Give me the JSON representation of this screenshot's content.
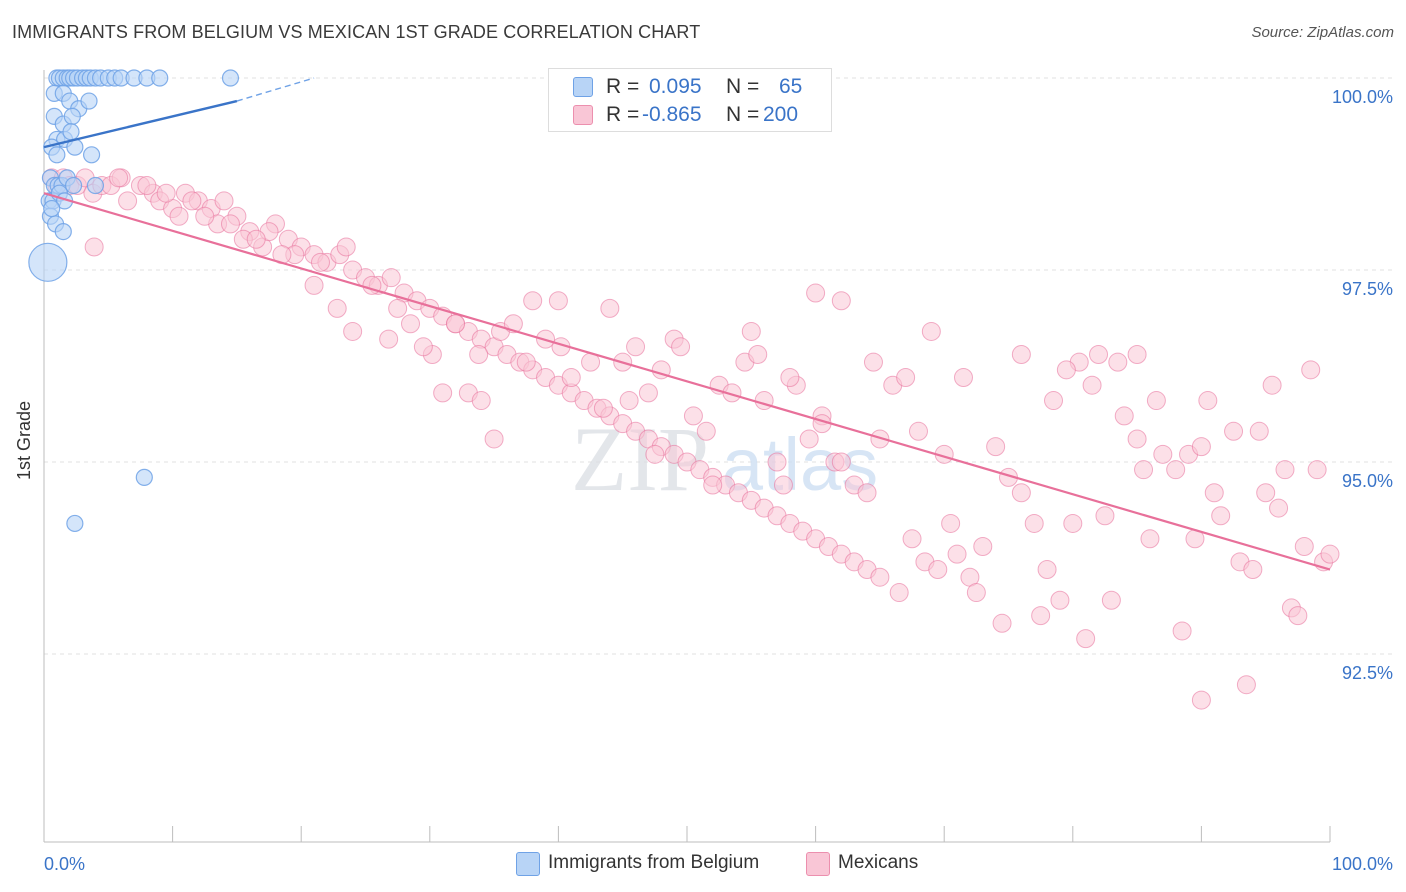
{
  "title": "IMMIGRANTS FROM BELGIUM VS MEXICAN 1ST GRADE CORRELATION CHART",
  "source": "Source: ZipAtlas.com",
  "watermark": {
    "zip": "ZIP",
    "atlas": "atlas"
  },
  "legend_top": {
    "rows": [
      {
        "r_label": "R =",
        "r_value": "0.095",
        "n_label": "N =",
        "n_value": "65",
        "color": "#6fa2e6"
      },
      {
        "r_label": "R =",
        "r_value": "-0.865",
        "n_label": "N =",
        "n_value": "200",
        "color": "#ec8fae"
      }
    ]
  },
  "legend_bottom": {
    "items": [
      {
        "label": "Immigrants from Belgium",
        "color": "#b8d4f6"
      },
      {
        "label": "Mexicans",
        "color": "#f9c6d6"
      }
    ]
  },
  "chart_data": {
    "type": "scatter",
    "title": "IMMIGRANTS FROM BELGIUM VS MEXICAN 1ST GRADE CORRELATION CHART",
    "xlabel": "",
    "ylabel": "1st Grade",
    "xlim": [
      0,
      100
    ],
    "ylim": [
      90.0,
      100.2
    ],
    "x_tick_labels": [
      "0.0%",
      "100.0%"
    ],
    "y_ticks": [
      100.0,
      97.5,
      95.0,
      92.5
    ],
    "y_tick_labels": [
      "100.0%",
      "97.5%",
      "95.0%",
      "92.5%"
    ],
    "series": [
      {
        "name": "Immigrants from Belgium",
        "color": "#6fa2e6",
        "fill": "#b8d4f6",
        "trend": {
          "x0": 0,
          "y0": 99.1,
          "x1": 15,
          "y1": 99.7,
          "dash_to_x": 21,
          "dash_to_y": 100.0
        },
        "points": [
          [
            1.0,
            100.0
          ],
          [
            1.2,
            100.0
          ],
          [
            1.5,
            100.0
          ],
          [
            1.8,
            100.0
          ],
          [
            2.0,
            100.0
          ],
          [
            2.3,
            100.0
          ],
          [
            2.6,
            100.0
          ],
          [
            3.0,
            100.0
          ],
          [
            3.3,
            100.0
          ],
          [
            3.6,
            100.0
          ],
          [
            4.0,
            100.0
          ],
          [
            4.4,
            100.0
          ],
          [
            5.0,
            100.0
          ],
          [
            5.5,
            100.0
          ],
          [
            6.0,
            100.0
          ],
          [
            7.0,
            100.0
          ],
          [
            8.0,
            100.0
          ],
          [
            9.0,
            100.0
          ],
          [
            14.5,
            100.0
          ],
          [
            0.8,
            99.8
          ],
          [
            1.5,
            99.8
          ],
          [
            2.0,
            99.7
          ],
          [
            2.7,
            99.6
          ],
          [
            3.5,
            99.7
          ],
          [
            0.8,
            99.5
          ],
          [
            1.5,
            99.4
          ],
          [
            2.2,
            99.5
          ],
          [
            1.0,
            99.2
          ],
          [
            1.6,
            99.2
          ],
          [
            2.1,
            99.3
          ],
          [
            0.6,
            99.1
          ],
          [
            1.0,
            99.0
          ],
          [
            2.4,
            99.1
          ],
          [
            3.7,
            99.0
          ],
          [
            0.5,
            98.7
          ],
          [
            0.8,
            98.6
          ],
          [
            1.1,
            98.6
          ],
          [
            1.4,
            98.6
          ],
          [
            1.8,
            98.7
          ],
          [
            2.3,
            98.6
          ],
          [
            0.4,
            98.4
          ],
          [
            0.7,
            98.4
          ],
          [
            1.2,
            98.5
          ],
          [
            1.6,
            98.4
          ],
          [
            0.5,
            98.2
          ],
          [
            0.9,
            98.1
          ],
          [
            1.5,
            98.0
          ],
          [
            0.6,
            98.3
          ],
          [
            4.0,
            98.6
          ],
          [
            0.3,
            97.6
          ],
          [
            7.8,
            94.8
          ],
          [
            2.4,
            94.2
          ]
        ],
        "large_point": [
          0.3,
          97.6
        ]
      },
      {
        "name": "Mexicans",
        "color": "#e8709a",
        "fill": "#f9c6d6",
        "trend": {
          "x0": 0,
          "y0": 98.5,
          "x1": 100,
          "y1": 93.6
        },
        "points": [
          [
            0.6,
            98.7
          ],
          [
            1.0,
            98.6
          ],
          [
            1.5,
            98.7
          ],
          [
            2.0,
            98.6
          ],
          [
            2.6,
            98.6
          ],
          [
            3.2,
            98.7
          ],
          [
            3.8,
            98.5
          ],
          [
            4.5,
            98.6
          ],
          [
            5.2,
            98.6
          ],
          [
            6.0,
            98.7
          ],
          [
            6.5,
            98.4
          ],
          [
            7.5,
            98.6
          ],
          [
            8.5,
            98.5
          ],
          [
            9.0,
            98.4
          ],
          [
            10.0,
            98.3
          ],
          [
            11.0,
            98.5
          ],
          [
            12.0,
            98.4
          ],
          [
            13.0,
            98.3
          ],
          [
            14.0,
            98.4
          ],
          [
            15.0,
            98.2
          ],
          [
            16.0,
            98.0
          ],
          [
            17.0,
            97.8
          ],
          [
            18.0,
            98.1
          ],
          [
            19.0,
            97.9
          ],
          [
            20.0,
            97.8
          ],
          [
            21.0,
            97.7
          ],
          [
            22.0,
            97.6
          ],
          [
            23.0,
            97.7
          ],
          [
            24.0,
            97.5
          ],
          [
            25.0,
            97.4
          ],
          [
            26.0,
            97.3
          ],
          [
            27.0,
            97.4
          ],
          [
            28.0,
            97.2
          ],
          [
            29.0,
            97.1
          ],
          [
            30.0,
            97.0
          ],
          [
            31.0,
            96.9
          ],
          [
            32.0,
            96.8
          ],
          [
            33.0,
            96.7
          ],
          [
            34.0,
            96.6
          ],
          [
            35.0,
            96.5
          ],
          [
            36.0,
            96.4
          ],
          [
            37.0,
            96.3
          ],
          [
            38.0,
            96.2
          ],
          [
            39.0,
            96.1
          ],
          [
            40.0,
            96.0
          ],
          [
            41.0,
            95.9
          ],
          [
            42.0,
            95.8
          ],
          [
            43.0,
            95.7
          ],
          [
            44.0,
            95.6
          ],
          [
            45.0,
            95.5
          ],
          [
            46.0,
            95.4
          ],
          [
            47.0,
            95.3
          ],
          [
            48.0,
            95.2
          ],
          [
            49.0,
            95.1
          ],
          [
            50.0,
            95.0
          ],
          [
            51.0,
            94.9
          ],
          [
            52.0,
            94.8
          ],
          [
            53.0,
            94.7
          ],
          [
            54.0,
            94.6
          ],
          [
            55.0,
            94.5
          ],
          [
            56.0,
            94.4
          ],
          [
            57.0,
            94.3
          ],
          [
            58.0,
            94.2
          ],
          [
            59.0,
            94.1
          ],
          [
            60.0,
            94.0
          ],
          [
            61.0,
            93.9
          ],
          [
            62.0,
            93.8
          ],
          [
            63.0,
            93.7
          ],
          [
            64.0,
            93.6
          ],
          [
            65.0,
            93.5
          ],
          [
            3.9,
            97.8
          ],
          [
            10.5,
            98.2
          ],
          [
            13.5,
            98.1
          ],
          [
            15.5,
            97.9
          ],
          [
            17.5,
            98.0
          ],
          [
            19.5,
            97.7
          ],
          [
            21.5,
            97.6
          ],
          [
            23.5,
            97.8
          ],
          [
            22.8,
            97.0
          ],
          [
            25.5,
            97.3
          ],
          [
            26.8,
            96.6
          ],
          [
            28.5,
            96.8
          ],
          [
            30.2,
            96.4
          ],
          [
            32.0,
            96.8
          ],
          [
            33.8,
            96.4
          ],
          [
            35.5,
            96.7
          ],
          [
            31.0,
            95.9
          ],
          [
            33.0,
            95.9
          ],
          [
            35.0,
            95.3
          ],
          [
            36.5,
            96.8
          ],
          [
            38.0,
            97.1
          ],
          [
            40.0,
            97.1
          ],
          [
            40.2,
            96.5
          ],
          [
            41.0,
            96.1
          ],
          [
            42.5,
            96.3
          ],
          [
            43.5,
            95.7
          ],
          [
            45.0,
            96.3
          ],
          [
            46.0,
            96.5
          ],
          [
            47.0,
            95.9
          ],
          [
            48.0,
            96.2
          ],
          [
            49.0,
            96.6
          ],
          [
            49.5,
            96.5
          ],
          [
            50.5,
            95.6
          ],
          [
            51.5,
            95.4
          ],
          [
            52.5,
            96.0
          ],
          [
            53.5,
            95.9
          ],
          [
            54.5,
            96.3
          ],
          [
            55.5,
            96.4
          ],
          [
            56.0,
            95.8
          ],
          [
            57.0,
            95.0
          ],
          [
            57.5,
            94.7
          ],
          [
            58.5,
            96.0
          ],
          [
            59.5,
            95.3
          ],
          [
            60.5,
            95.6
          ],
          [
            61.5,
            95.0
          ],
          [
            62.0,
            95.0
          ],
          [
            63.0,
            94.7
          ],
          [
            64.0,
            94.6
          ],
          [
            65.0,
            95.3
          ],
          [
            66.0,
            96.0
          ],
          [
            67.0,
            96.1
          ],
          [
            67.5,
            94.0
          ],
          [
            68.5,
            93.7
          ],
          [
            69.5,
            93.6
          ],
          [
            70.5,
            94.2
          ],
          [
            71.0,
            93.8
          ],
          [
            72.0,
            93.5
          ],
          [
            73.0,
            93.9
          ],
          [
            74.0,
            95.2
          ],
          [
            75.0,
            94.8
          ],
          [
            76.0,
            94.6
          ],
          [
            77.0,
            94.2
          ],
          [
            78.0,
            93.6
          ],
          [
            79.0,
            93.2
          ],
          [
            80.0,
            94.2
          ],
          [
            80.5,
            96.3
          ],
          [
            81.5,
            96.0
          ],
          [
            82.5,
            94.3
          ],
          [
            83.5,
            96.3
          ],
          [
            84.0,
            95.6
          ],
          [
            85.0,
            95.3
          ],
          [
            85.5,
            94.9
          ],
          [
            86.0,
            94.0
          ],
          [
            87.0,
            95.1
          ],
          [
            88.0,
            94.9
          ],
          [
            89.0,
            95.1
          ],
          [
            89.5,
            94.0
          ],
          [
            90.0,
            95.2
          ],
          [
            91.0,
            94.6
          ],
          [
            91.5,
            94.3
          ],
          [
            92.5,
            95.4
          ],
          [
            93.0,
            93.7
          ],
          [
            94.0,
            93.6
          ],
          [
            95.0,
            94.6
          ],
          [
            95.5,
            96.0
          ],
          [
            96.0,
            94.4
          ],
          [
            96.5,
            94.9
          ],
          [
            97.0,
            93.1
          ],
          [
            98.0,
            93.9
          ],
          [
            98.5,
            96.2
          ],
          [
            99.0,
            94.9
          ],
          [
            99.5,
            93.7
          ],
          [
            100.0,
            93.8
          ],
          [
            60.0,
            97.2
          ],
          [
            62.0,
            97.1
          ],
          [
            44.0,
            97.0
          ],
          [
            55.0,
            96.7
          ],
          [
            60.5,
            95.5
          ],
          [
            66.5,
            93.3
          ],
          [
            68.0,
            95.4
          ],
          [
            70.0,
            95.1
          ],
          [
            72.5,
            93.3
          ],
          [
            74.5,
            92.9
          ],
          [
            77.5,
            93.0
          ],
          [
            79.5,
            96.2
          ],
          [
            81.0,
            92.7
          ],
          [
            83.0,
            93.2
          ],
          [
            85.0,
            96.4
          ],
          [
            88.5,
            92.8
          ],
          [
            90.0,
            91.9
          ],
          [
            93.5,
            92.1
          ],
          [
            97.5,
            93.0
          ],
          [
            82.0,
            96.4
          ],
          [
            86.5,
            95.8
          ],
          [
            90.5,
            95.8
          ],
          [
            94.5,
            95.4
          ],
          [
            64.5,
            96.3
          ],
          [
            69.0,
            96.7
          ],
          [
            71.5,
            96.1
          ],
          [
            76.0,
            96.4
          ],
          [
            78.5,
            95.8
          ],
          [
            58.0,
            96.1
          ],
          [
            52.0,
            94.7
          ],
          [
            47.5,
            95.1
          ],
          [
            45.5,
            95.8
          ],
          [
            39.0,
            96.6
          ],
          [
            37.5,
            96.3
          ],
          [
            34.0,
            95.8
          ],
          [
            29.5,
            96.5
          ],
          [
            27.5,
            97.0
          ],
          [
            24.0,
            96.7
          ],
          [
            21.0,
            97.3
          ],
          [
            18.5,
            97.7
          ],
          [
            16.5,
            97.9
          ],
          [
            14.5,
            98.1
          ],
          [
            12.5,
            98.2
          ],
          [
            11.5,
            98.4
          ],
          [
            9.5,
            98.5
          ],
          [
            8.0,
            98.6
          ],
          [
            5.8,
            98.7
          ]
        ]
      }
    ]
  }
}
